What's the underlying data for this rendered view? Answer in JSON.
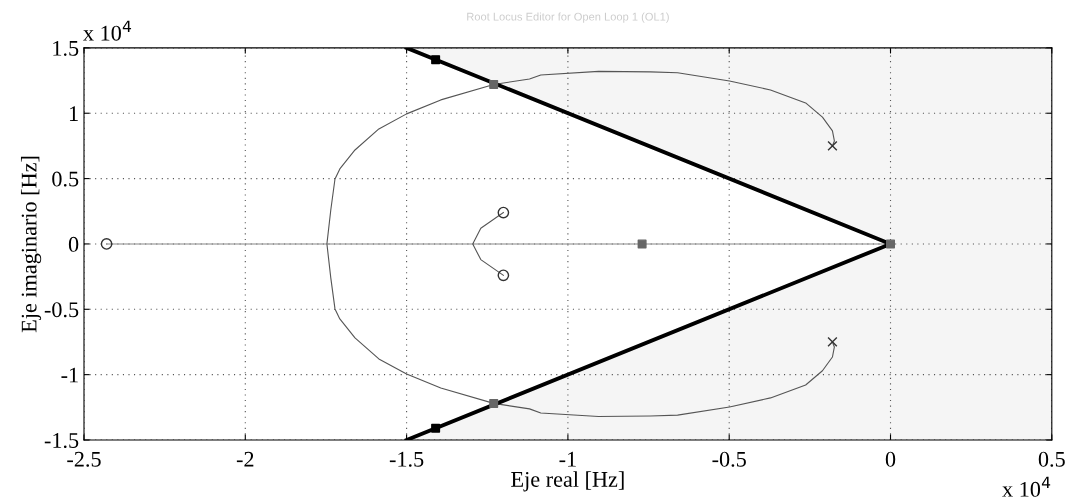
{
  "chart_data": {
    "type": "line",
    "title": "Root Locus Editor for Open Loop 1 (OL1)",
    "xlabel": "Eje real [Hz]",
    "ylabel": "Eje imaginario [Hz]",
    "annotations": [
      "x 10$^{4}$",
      "x 10$^{4}$"
    ],
    "xlim": [
      -2.5,
      0.5
    ],
    "xticks": [
      -2.5,
      -2,
      -1.5,
      -1,
      -0.5,
      0,
      0.5
    ],
    "ylim": [
      -1.5,
      1.5
    ],
    "yticks": [
      -1.5,
      -1,
      -0.5,
      0,
      0.5,
      1,
      1.5
    ],
    "grid": true,
    "line_style": "solid",
    "series": [
      {
        "type": "area",
        "color": "#f5f5f5",
        "x": [
          -1.5,
          0,
          0.5,
          0.5
        ],
        "values": [
          1.5,
          0,
          0,
          1.5
        ]
      },
      {
        "type": "area",
        "color": "#f5f5f5",
        "x": [
          -1.5,
          0,
          0.5,
          0.5
        ],
        "values": [
          -1.5,
          0,
          0,
          -1.5
        ]
      },
      {
        "color": "#888888",
        "x": [
          -2.43,
          0
        ],
        "values": [
          0,
          0
        ]
      },
      {
        "color": "#555555",
        "x": [
          -0.18,
          -0.174,
          -0.18,
          -0.211,
          -0.263,
          -0.372,
          -0.499,
          -0.66,
          -0.744,
          -0.905,
          -1.084,
          -1.119,
          -1.23,
          -1.394,
          -1.5,
          -1.586,
          -1.66,
          -1.707,
          -1.722,
          -1.735,
          -1.747,
          -1.735,
          -1.722,
          -1.707,
          -1.66,
          -1.586,
          -1.5,
          -1.394,
          -1.23,
          -1.119,
          -1.084,
          -0.905,
          -0.744,
          -0.66,
          -0.499,
          -0.372,
          -0.263,
          -0.211,
          -0.18,
          -0.174,
          -0.18
        ],
        "values": [
          0.75,
          0.788,
          0.865,
          0.97,
          1.079,
          1.178,
          1.247,
          1.31,
          1.316,
          1.32,
          1.293,
          1.262,
          1.22,
          1.102,
          0.995,
          0.88,
          0.719,
          0.574,
          0.497,
          0.26,
          0,
          -0.26,
          -0.497,
          -0.574,
          -0.719,
          -0.88,
          -0.995,
          -1.102,
          -1.22,
          -1.262,
          -1.293,
          -1.32,
          -1.316,
          -1.31,
          -1.247,
          -1.178,
          -1.079,
          -0.97,
          -0.865,
          -0.788,
          -0.75
        ]
      },
      {
        "color": "#555555",
        "x": [
          -1.2,
          -1.27,
          -1.295,
          -1.27,
          -1.2
        ],
        "values": [
          0.24,
          0.12,
          0,
          -0.12,
          -0.24
        ]
      },
      {
        "color": "#000000",
        "x": [
          -1.5,
          0,
          -1.5
        ],
        "values": [
          1.5,
          0,
          -1.5
        ]
      },
      {
        "type": "scatter",
        "color": "#333333",
        "marker": "cross",
        "x": [
          -0.18,
          -0.18
        ],
        "values": [
          0.75,
          -0.75
        ]
      },
      {
        "type": "scatter",
        "color": "#333333",
        "marker": "circle",
        "x": [
          -2.43,
          -1.2,
          -1.2
        ],
        "values": [
          0,
          0.24,
          -0.24
        ]
      },
      {
        "type": "scatter",
        "color": "#000000",
        "marker": "square",
        "x": [
          -1.41,
          -1.41
        ],
        "values": [
          1.41,
          -1.41
        ]
      },
      {
        "type": "scatter",
        "color": "#666666",
        "marker": "square",
        "x": [
          -1.23,
          -1.23,
          -0.77,
          0
        ],
        "values": [
          1.22,
          -1.22,
          0,
          0
        ]
      }
    ]
  }
}
